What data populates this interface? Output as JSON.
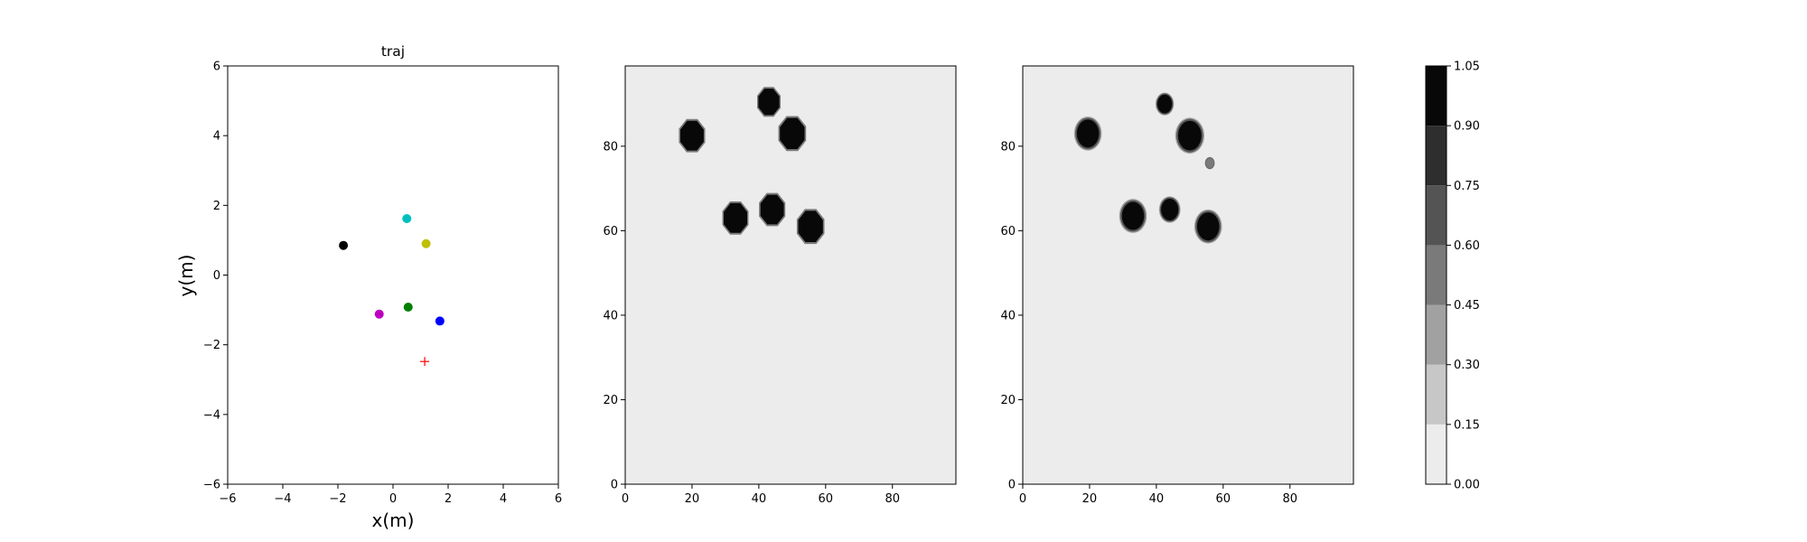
{
  "chart_data": [
    {
      "type": "scatter",
      "title": "traj",
      "xlabel": "x(m)",
      "ylabel": "y(m)",
      "xlim": [
        -6,
        6
      ],
      "ylim": [
        -6,
        6
      ],
      "xticks": [
        -6,
        -4,
        -2,
        0,
        2,
        4,
        6
      ],
      "yticks": [
        -6,
        -4,
        -2,
        0,
        2,
        4,
        6
      ],
      "grid": false,
      "points": [
        {
          "x": -1.8,
          "y": 0.85,
          "color": "#000000",
          "marker": "dot"
        },
        {
          "x": 0.5,
          "y": 1.62,
          "color": "#00bfbf",
          "marker": "dot"
        },
        {
          "x": 1.2,
          "y": 0.9,
          "color": "#bfbf00",
          "marker": "dot"
        },
        {
          "x": -0.5,
          "y": -1.12,
          "color": "#bf00bf",
          "marker": "dot"
        },
        {
          "x": 0.55,
          "y": -0.92,
          "color": "#008000",
          "marker": "dot"
        },
        {
          "x": 1.7,
          "y": -1.32,
          "color": "#0000ff",
          "marker": "dot"
        },
        {
          "x": 1.15,
          "y": -2.48,
          "color": "#ff0000",
          "marker": "plus"
        }
      ]
    },
    {
      "type": "heatmap",
      "title": "",
      "xlim": [
        0,
        99
      ],
      "ylim": [
        0,
        99
      ],
      "xticks": [
        0,
        20,
        40,
        60,
        80
      ],
      "yticks": [
        0,
        20,
        40,
        60,
        80
      ],
      "background_value": 0.05,
      "blobs": [
        {
          "x": 20,
          "y": 82.5,
          "r": 3.8,
          "value": 1.0
        },
        {
          "x": 43,
          "y": 90.5,
          "r": 3.4,
          "value": 1.0
        },
        {
          "x": 50,
          "y": 83,
          "r": 4.0,
          "value": 1.0
        },
        {
          "x": 33,
          "y": 63,
          "r": 3.8,
          "value": 1.0
        },
        {
          "x": 44,
          "y": 65,
          "r": 3.8,
          "value": 1.0
        },
        {
          "x": 55.5,
          "y": 61,
          "r": 4.0,
          "value": 1.0
        }
      ]
    },
    {
      "type": "heatmap",
      "title": "",
      "xlim": [
        0,
        99
      ],
      "ylim": [
        0,
        99
      ],
      "xticks": [
        0,
        20,
        40,
        60,
        80
      ],
      "yticks": [
        0,
        20,
        40,
        60,
        80
      ],
      "background_value": 0.05,
      "blobs": [
        {
          "x": 19.5,
          "y": 83,
          "r": 3.6,
          "value": 1.0
        },
        {
          "x": 42.5,
          "y": 90,
          "r": 2.4,
          "value": 1.0
        },
        {
          "x": 50,
          "y": 82.5,
          "r": 3.8,
          "value": 1.0
        },
        {
          "x": 56,
          "y": 76,
          "r": 1.3,
          "value": 0.6
        },
        {
          "x": 33,
          "y": 63.5,
          "r": 3.6,
          "value": 1.0
        },
        {
          "x": 44,
          "y": 65,
          "r": 2.8,
          "value": 1.0
        },
        {
          "x": 55.5,
          "y": 61,
          "r": 3.6,
          "value": 1.0
        }
      ]
    }
  ],
  "colorbar": {
    "ticks": [
      "0.00",
      "0.15",
      "0.30",
      "0.45",
      "0.60",
      "0.75",
      "0.90",
      "1.05"
    ],
    "levels": [
      0,
      0.15,
      0.3,
      0.45,
      0.6,
      0.75,
      0.9,
      1.05
    ],
    "colors": [
      "#ececec",
      "#c7c7c7",
      "#a1a1a1",
      "#7a7a7a",
      "#545454",
      "#2e2e2e",
      "#080808"
    ]
  }
}
